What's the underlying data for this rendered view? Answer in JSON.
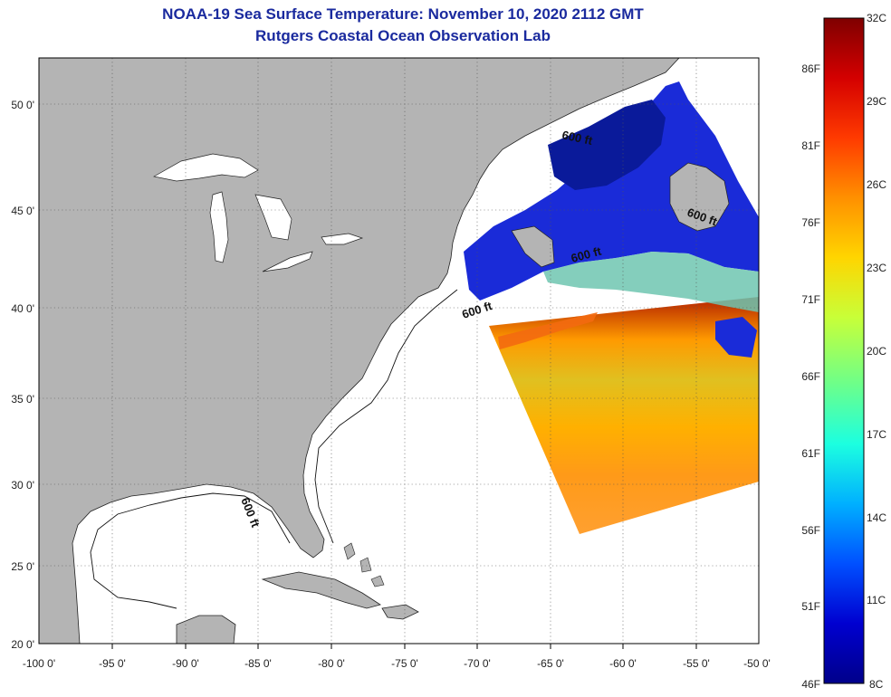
{
  "header": {
    "title": "NOAA-19 Sea Surface Temperature:  November 10, 2020 2112 GMT",
    "subtitle": "Rutgers Coastal Ocean Observation Lab"
  },
  "map": {
    "lat_labels": [
      "50 0'",
      "45 0'",
      "40 0'",
      "35 0'",
      "30 0'",
      "25 0'",
      "20 0'"
    ],
    "lon_labels": [
      "-100 0'",
      "-95 0'",
      "-90 0'",
      "-85 0'",
      "-80 0'",
      "-75 0'",
      "-70 0'",
      "-65 0'",
      "-60 0'",
      "-55 0'",
      "-50 0'"
    ],
    "contour_labels": [
      "600 ft",
      "600 ft",
      "600 ft",
      "600 ft",
      "600 ft"
    ],
    "land_color": "#b4b4b4",
    "ocean_color": "#ffffff"
  },
  "colorbar": {
    "celsius_labels": [
      "32C",
      "29C",
      "26C",
      "23C",
      "20C",
      "17C",
      "14C",
      "11C",
      "8C"
    ],
    "fahrenheit_labels": [
      "86F",
      "81F",
      "76F",
      "71F",
      "66F",
      "61F",
      "56F",
      "51F",
      "46F"
    ],
    "stops": [
      "#7f0000",
      "#d40000",
      "#ff3a00",
      "#ff9000",
      "#ffd500",
      "#c8ff38",
      "#6dff8a",
      "#1cffe0",
      "#00b0ff",
      "#0050ff",
      "#0000d0",
      "#00008a"
    ]
  }
}
